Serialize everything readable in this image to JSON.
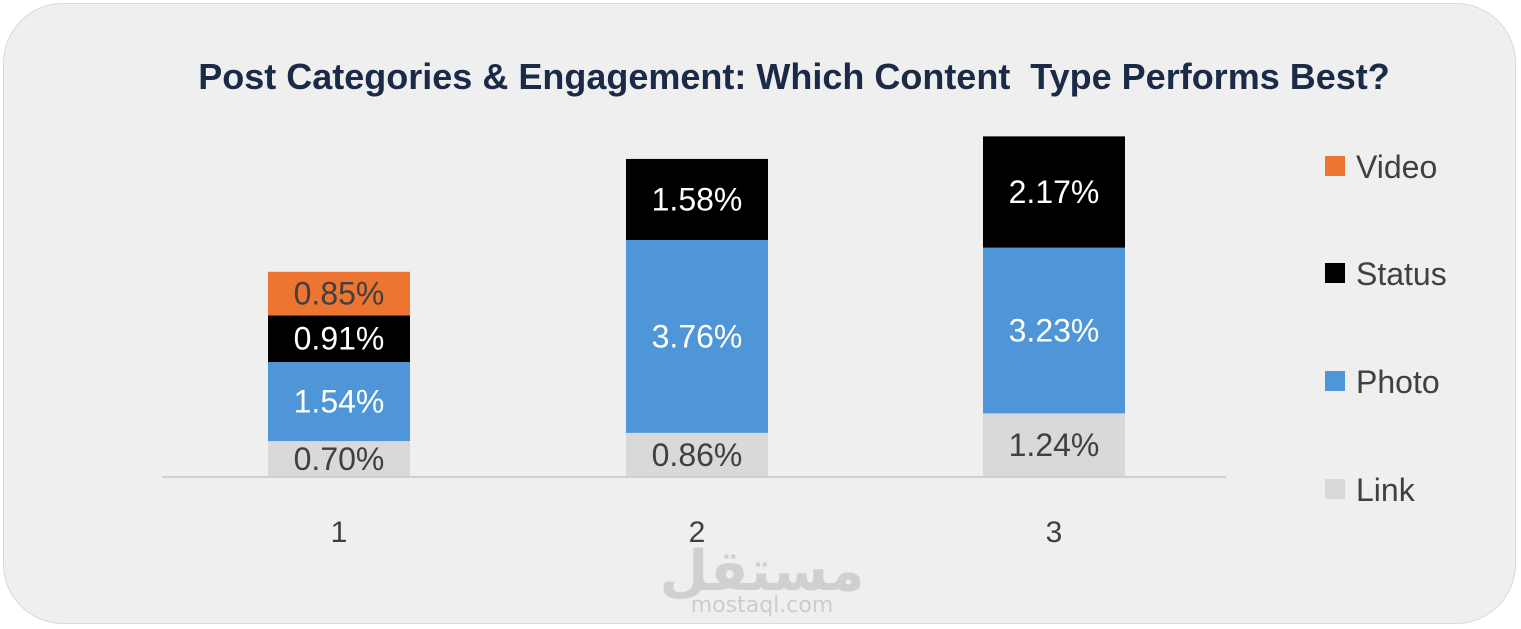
{
  "chart_data": {
    "type": "bar",
    "stacked": true,
    "title": "Post Categories & Engagement: Which Content  Type Performs Best?",
    "categories": [
      "1",
      "2",
      "3"
    ],
    "series": [
      {
        "name": "Link",
        "color": "#d9d9d9",
        "label_color": "#404040",
        "values": [
          0.7,
          0.86,
          1.24
        ],
        "labels": [
          "0.70%",
          "0.86%",
          "1.24%"
        ]
      },
      {
        "name": "Photo",
        "color": "#4f96d8",
        "label_color": "#ffffff",
        "values": [
          1.54,
          3.76,
          3.23
        ],
        "labels": [
          "1.54%",
          "3.76%",
          "3.23%"
        ]
      },
      {
        "name": "Status",
        "color": "#000000",
        "label_color": "#ffffff",
        "values": [
          0.91,
          1.58,
          2.17
        ],
        "labels": [
          "0.91%",
          "1.58%",
          "2.17%"
        ]
      },
      {
        "name": "Video",
        "color": "#ed7431",
        "label_color": "#404040",
        "values": [
          0.85,
          null,
          null
        ],
        "labels": [
          "0.85%",
          "",
          ""
        ]
      }
    ],
    "legend_order": [
      "Video",
      "Status",
      "Photo",
      "Link"
    ],
    "legend_position": "right",
    "grid": false
  },
  "watermark": {
    "arabic": "مستقل",
    "latin": "mostaql.com"
  }
}
